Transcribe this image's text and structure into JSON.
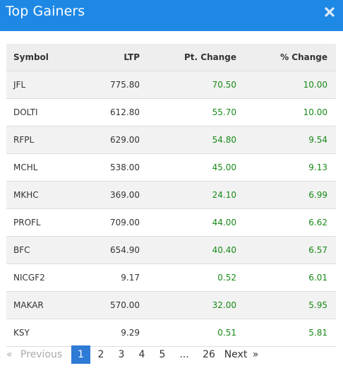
{
  "colors": {
    "accent": "#1e88e5",
    "gain": "#178a17",
    "active_page": "#2e7bd6"
  },
  "modal": {
    "title": "Top Gainers",
    "close_icon": "close-icon"
  },
  "table": {
    "headers": {
      "symbol": "Symbol",
      "ltp": "LTP",
      "pt_change": "Pt. Change",
      "pct_change": "% Change"
    },
    "rows": [
      {
        "symbol": "JFL",
        "ltp": "775.80",
        "pt_change": "70.50",
        "pct_change": "10.00"
      },
      {
        "symbol": "DOLTI",
        "ltp": "612.80",
        "pt_change": "55.70",
        "pct_change": "10.00"
      },
      {
        "symbol": "RFPL",
        "ltp": "629.00",
        "pt_change": "54.80",
        "pct_change": "9.54"
      },
      {
        "symbol": "MCHL",
        "ltp": "538.00",
        "pt_change": "45.00",
        "pct_change": "9.13"
      },
      {
        "symbol": "MKHC",
        "ltp": "369.00",
        "pt_change": "24.10",
        "pct_change": "6.99"
      },
      {
        "symbol": "PROFL",
        "ltp": "709.00",
        "pt_change": "44.00",
        "pct_change": "6.62"
      },
      {
        "symbol": "BFC",
        "ltp": "654.90",
        "pt_change": "40.40",
        "pct_change": "6.57"
      },
      {
        "symbol": "NICGF2",
        "ltp": "9.17",
        "pt_change": "0.52",
        "pct_change": "6.01"
      },
      {
        "symbol": "MAKAR",
        "ltp": "570.00",
        "pt_change": "32.00",
        "pct_change": "5.95"
      },
      {
        "symbol": "KSY",
        "ltp": "9.29",
        "pt_change": "0.51",
        "pct_change": "5.81"
      }
    ]
  },
  "pagination": {
    "first": "«",
    "previous": "Previous",
    "pages": [
      "1",
      "2",
      "3",
      "4",
      "5"
    ],
    "ellipsis": "...",
    "last_page": "26",
    "next": "Next",
    "last": "»",
    "current": "1"
  }
}
